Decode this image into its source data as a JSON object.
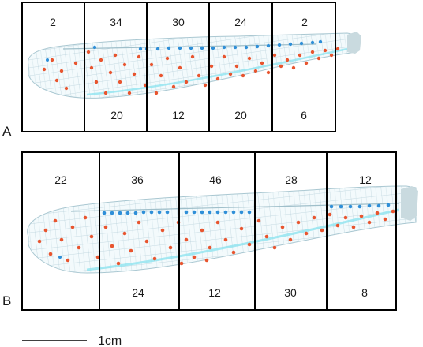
{
  "figure": {
    "scale_bar_label": "1cm",
    "colors": {
      "box_stroke": "#000000",
      "wing_membrane": "#f3fafc",
      "wing_vein": "#b6d0da",
      "red_dots": "#e8552f",
      "blue_dots": "#2f8fd8",
      "cyan_vein": "#8fe3ef",
      "stalk": "#c9dadf"
    },
    "panels": [
      {
        "id": "A",
        "label": "A",
        "top_counts": [
          "2",
          "34",
          "30",
          "24",
          "2"
        ],
        "bottom_counts": [
          "",
          "20",
          "12",
          "20",
          "6"
        ]
      },
      {
        "id": "B",
        "label": "B",
        "top_counts": [
          "22",
          "36",
          "46",
          "28",
          "12"
        ],
        "bottom_counts": [
          "",
          "24",
          "12",
          "30",
          "8"
        ]
      }
    ]
  }
}
